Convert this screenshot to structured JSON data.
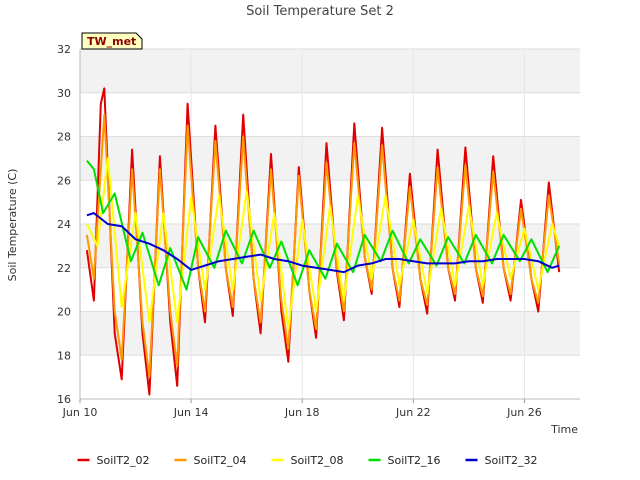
{
  "chart_data": {
    "type": "line",
    "title": "Soil Temperature Set 2",
    "xlabel": "Time",
    "ylabel": "Soil Temperature (C)",
    "badge": "TW_met",
    "ylim": [
      16,
      32
    ],
    "yticks": [
      16,
      18,
      20,
      22,
      24,
      26,
      28,
      30,
      32
    ],
    "xlim": [
      "2024-06-10",
      "2024-06-28"
    ],
    "xticks": [
      {
        "date": "2024-06-10",
        "label": "Jun 10"
      },
      {
        "date": "2024-06-14",
        "label": "Jun 14"
      },
      {
        "date": "2024-06-18",
        "label": "Jun 18"
      },
      {
        "date": "2024-06-22",
        "label": "Jun 22"
      },
      {
        "date": "2024-06-26",
        "label": "Jun 26"
      }
    ],
    "grid": true,
    "legend_position": "bottom",
    "series": [
      {
        "name": "SoilT2_02",
        "color": "#e00000",
        "points": [
          [
            "2024-06-10 06:00",
            22.8
          ],
          [
            "2024-06-10 12:00",
            20.5
          ],
          [
            "2024-06-10 18:00",
            29.5
          ],
          [
            "2024-06-10 21:00",
            30.2
          ],
          [
            "2024-06-11 06:00",
            19.0
          ],
          [
            "2024-06-11 12:00",
            16.9
          ],
          [
            "2024-06-11 21:00",
            27.4
          ],
          [
            "2024-06-12 06:00",
            19.0
          ],
          [
            "2024-06-12 12:00",
            16.2
          ],
          [
            "2024-06-12 21:00",
            27.1
          ],
          [
            "2024-06-13 06:00",
            19.5
          ],
          [
            "2024-06-13 12:00",
            16.6
          ],
          [
            "2024-06-13 21:00",
            29.5
          ],
          [
            "2024-06-14 06:00",
            22.0
          ],
          [
            "2024-06-14 12:00",
            19.5
          ],
          [
            "2024-06-14 21:00",
            28.5
          ],
          [
            "2024-06-15 06:00",
            22.0
          ],
          [
            "2024-06-15 12:00",
            19.8
          ],
          [
            "2024-06-15 21:00",
            29.0
          ],
          [
            "2024-06-16 06:00",
            21.5
          ],
          [
            "2024-06-16 12:00",
            19.0
          ],
          [
            "2024-06-16 21:00",
            27.2
          ],
          [
            "2024-06-17 06:00",
            20.0
          ],
          [
            "2024-06-17 12:00",
            17.7
          ],
          [
            "2024-06-17 21:00",
            26.6
          ],
          [
            "2024-06-18 06:00",
            21.0
          ],
          [
            "2024-06-18 12:00",
            18.8
          ],
          [
            "2024-06-18 21:00",
            27.7
          ],
          [
            "2024-06-19 06:00",
            21.8
          ],
          [
            "2024-06-19 12:00",
            19.6
          ],
          [
            "2024-06-19 21:00",
            28.6
          ],
          [
            "2024-06-20 06:00",
            22.5
          ],
          [
            "2024-06-20 12:00",
            20.8
          ],
          [
            "2024-06-20 21:00",
            28.4
          ],
          [
            "2024-06-21 06:00",
            22.0
          ],
          [
            "2024-06-21 12:00",
            20.2
          ],
          [
            "2024-06-21 21:00",
            26.3
          ],
          [
            "2024-06-22 06:00",
            21.5
          ],
          [
            "2024-06-22 12:00",
            19.9
          ],
          [
            "2024-06-22 21:00",
            27.4
          ],
          [
            "2024-06-23 06:00",
            22.0
          ],
          [
            "2024-06-23 12:00",
            20.5
          ],
          [
            "2024-06-23 21:00",
            27.5
          ],
          [
            "2024-06-24 06:00",
            22.0
          ],
          [
            "2024-06-24 12:00",
            20.4
          ],
          [
            "2024-06-24 21:00",
            27.1
          ],
          [
            "2024-06-25 06:00",
            22.0
          ],
          [
            "2024-06-25 12:00",
            20.5
          ],
          [
            "2024-06-25 21:00",
            25.1
          ],
          [
            "2024-06-26 06:00",
            21.5
          ],
          [
            "2024-06-26 12:00",
            20.0
          ],
          [
            "2024-06-26 21:00",
            25.9
          ],
          [
            "2024-06-27 06:00",
            21.8
          ]
        ]
      },
      {
        "name": "SoilT2_04",
        "color": "#ff9900",
        "points": [
          [
            "2024-06-10 06:00",
            23.5
          ],
          [
            "2024-06-10 12:00",
            21.5
          ],
          [
            "2024-06-10 21:00",
            29.0
          ],
          [
            "2024-06-11 06:00",
            20.0
          ],
          [
            "2024-06-11 12:00",
            17.8
          ],
          [
            "2024-06-11 21:00",
            26.5
          ],
          [
            "2024-06-12 06:00",
            19.5
          ],
          [
            "2024-06-12 12:00",
            17.0
          ],
          [
            "2024-06-12 21:00",
            26.5
          ],
          [
            "2024-06-13 06:00",
            20.0
          ],
          [
            "2024-06-13 12:00",
            17.5
          ],
          [
            "2024-06-13 21:00",
            28.5
          ],
          [
            "2024-06-14 06:00",
            22.0
          ],
          [
            "2024-06-14 12:00",
            20.0
          ],
          [
            "2024-06-14 21:00",
            27.8
          ],
          [
            "2024-06-15 06:00",
            22.0
          ],
          [
            "2024-06-15 12:00",
            20.2
          ],
          [
            "2024-06-15 21:00",
            28.0
          ],
          [
            "2024-06-16 06:00",
            21.5
          ],
          [
            "2024-06-16 12:00",
            19.5
          ],
          [
            "2024-06-16 21:00",
            26.5
          ],
          [
            "2024-06-17 06:00",
            20.5
          ],
          [
            "2024-06-17 12:00",
            18.3
          ],
          [
            "2024-06-17 21:00",
            26.2
          ],
          [
            "2024-06-18 06:00",
            21.0
          ],
          [
            "2024-06-18 12:00",
            19.2
          ],
          [
            "2024-06-18 21:00",
            26.8
          ],
          [
            "2024-06-19 06:00",
            22.0
          ],
          [
            "2024-06-19 12:00",
            20.0
          ],
          [
            "2024-06-19 21:00",
            27.7
          ],
          [
            "2024-06-20 06:00",
            22.5
          ],
          [
            "2024-06-20 12:00",
            21.0
          ],
          [
            "2024-06-20 21:00",
            27.6
          ],
          [
            "2024-06-21 06:00",
            22.0
          ],
          [
            "2024-06-21 12:00",
            20.5
          ],
          [
            "2024-06-21 21:00",
            25.7
          ],
          [
            "2024-06-22 06:00",
            21.5
          ],
          [
            "2024-06-22 12:00",
            20.3
          ],
          [
            "2024-06-22 21:00",
            26.6
          ],
          [
            "2024-06-23 06:00",
            22.0
          ],
          [
            "2024-06-23 12:00",
            20.8
          ],
          [
            "2024-06-23 21:00",
            26.7
          ],
          [
            "2024-06-24 06:00",
            22.0
          ],
          [
            "2024-06-24 12:00",
            20.7
          ],
          [
            "2024-06-24 21:00",
            26.4
          ],
          [
            "2024-06-25 06:00",
            22.0
          ],
          [
            "2024-06-25 12:00",
            20.8
          ],
          [
            "2024-06-25 21:00",
            24.7
          ],
          [
            "2024-06-26 06:00",
            21.5
          ],
          [
            "2024-06-26 12:00",
            20.4
          ],
          [
            "2024-06-26 21:00",
            25.3
          ],
          [
            "2024-06-27 06:00",
            22.2
          ]
        ]
      },
      {
        "name": "SoilT2_08",
        "color": "#ffff00",
        "points": [
          [
            "2024-06-10 06:00",
            24.0
          ],
          [
            "2024-06-10 15:00",
            23.0
          ],
          [
            "2024-06-11 00:00",
            27.0
          ],
          [
            "2024-06-11 12:00",
            20.2
          ],
          [
            "2024-06-12 00:00",
            24.5
          ],
          [
            "2024-06-12 12:00",
            19.5
          ],
          [
            "2024-06-13 00:00",
            24.5
          ],
          [
            "2024-06-13 12:00",
            19.5
          ],
          [
            "2024-06-14 00:00",
            25.2
          ],
          [
            "2024-06-14 12:00",
            21.0
          ],
          [
            "2024-06-15 00:00",
            25.3
          ],
          [
            "2024-06-15 12:00",
            21.0
          ],
          [
            "2024-06-16 00:00",
            25.5
          ],
          [
            "2024-06-16 12:00",
            20.5
          ],
          [
            "2024-06-17 00:00",
            24.5
          ],
          [
            "2024-06-17 12:00",
            19.2
          ],
          [
            "2024-06-18 00:00",
            24.2
          ],
          [
            "2024-06-18 12:00",
            20.0
          ],
          [
            "2024-06-19 00:00",
            24.8
          ],
          [
            "2024-06-19 12:00",
            20.5
          ],
          [
            "2024-06-20 00:00",
            25.3
          ],
          [
            "2024-06-20 12:00",
            21.5
          ],
          [
            "2024-06-21 00:00",
            25.3
          ],
          [
            "2024-06-21 12:00",
            21.2
          ],
          [
            "2024-06-22 00:00",
            24.2
          ],
          [
            "2024-06-22 12:00",
            20.8
          ],
          [
            "2024-06-23 00:00",
            24.7
          ],
          [
            "2024-06-23 12:00",
            21.2
          ],
          [
            "2024-06-24 00:00",
            24.8
          ],
          [
            "2024-06-24 12:00",
            21.2
          ],
          [
            "2024-06-25 00:00",
            24.5
          ],
          [
            "2024-06-25 12:00",
            21.5
          ],
          [
            "2024-06-26 00:00",
            23.8
          ],
          [
            "2024-06-26 12:00",
            21.0
          ],
          [
            "2024-06-27 00:00",
            24.0
          ],
          [
            "2024-06-27 06:00",
            23.0
          ]
        ]
      },
      {
        "name": "SoilT2_16",
        "color": "#00e000",
        "points": [
          [
            "2024-06-10 06:00",
            26.9
          ],
          [
            "2024-06-10 12:00",
            26.5
          ],
          [
            "2024-06-10 20:00",
            24.5
          ],
          [
            "2024-06-11 06:00",
            25.4
          ],
          [
            "2024-06-11 20:00",
            22.3
          ],
          [
            "2024-06-12 06:00",
            23.6
          ],
          [
            "2024-06-12 20:00",
            21.2
          ],
          [
            "2024-06-13 06:00",
            22.9
          ],
          [
            "2024-06-13 20:00",
            21.0
          ],
          [
            "2024-06-14 06:00",
            23.4
          ],
          [
            "2024-06-14 20:00",
            22.0
          ],
          [
            "2024-06-15 06:00",
            23.7
          ],
          [
            "2024-06-15 20:00",
            22.2
          ],
          [
            "2024-06-16 06:00",
            23.7
          ],
          [
            "2024-06-16 20:00",
            22.0
          ],
          [
            "2024-06-17 06:00",
            23.2
          ],
          [
            "2024-06-17 20:00",
            21.2
          ],
          [
            "2024-06-18 06:00",
            22.8
          ],
          [
            "2024-06-18 20:00",
            21.5
          ],
          [
            "2024-06-19 06:00",
            23.1
          ],
          [
            "2024-06-19 20:00",
            21.8
          ],
          [
            "2024-06-20 06:00",
            23.5
          ],
          [
            "2024-06-20 20:00",
            22.3
          ],
          [
            "2024-06-21 06:00",
            23.7
          ],
          [
            "2024-06-21 20:00",
            22.2
          ],
          [
            "2024-06-22 06:00",
            23.3
          ],
          [
            "2024-06-22 20:00",
            22.1
          ],
          [
            "2024-06-23 06:00",
            23.4
          ],
          [
            "2024-06-23 20:00",
            22.2
          ],
          [
            "2024-06-24 06:00",
            23.5
          ],
          [
            "2024-06-24 20:00",
            22.2
          ],
          [
            "2024-06-25 06:00",
            23.5
          ],
          [
            "2024-06-25 20:00",
            22.3
          ],
          [
            "2024-06-26 06:00",
            23.3
          ],
          [
            "2024-06-26 20:00",
            21.8
          ],
          [
            "2024-06-27 06:00",
            23.0
          ]
        ]
      },
      {
        "name": "SoilT2_32",
        "color": "#0000cc",
        "points": [
          [
            "2024-06-10 06:00",
            24.4
          ],
          [
            "2024-06-10 12:00",
            24.5
          ],
          [
            "2024-06-11 00:00",
            24.0
          ],
          [
            "2024-06-11 12:00",
            23.9
          ],
          [
            "2024-06-12 00:00",
            23.3
          ],
          [
            "2024-06-12 12:00",
            23.1
          ],
          [
            "2024-06-13 00:00",
            22.8
          ],
          [
            "2024-06-13 12:00",
            22.4
          ],
          [
            "2024-06-14 00:00",
            21.9
          ],
          [
            "2024-06-14 12:00",
            22.1
          ],
          [
            "2024-06-15 00:00",
            22.3
          ],
          [
            "2024-06-15 12:00",
            22.4
          ],
          [
            "2024-06-16 00:00",
            22.5
          ],
          [
            "2024-06-16 12:00",
            22.6
          ],
          [
            "2024-06-17 00:00",
            22.4
          ],
          [
            "2024-06-17 12:00",
            22.3
          ],
          [
            "2024-06-18 00:00",
            22.1
          ],
          [
            "2024-06-18 12:00",
            22.0
          ],
          [
            "2024-06-19 00:00",
            21.9
          ],
          [
            "2024-06-19 12:00",
            21.8
          ],
          [
            "2024-06-20 00:00",
            22.1
          ],
          [
            "2024-06-20 12:00",
            22.2
          ],
          [
            "2024-06-21 00:00",
            22.4
          ],
          [
            "2024-06-21 12:00",
            22.4
          ],
          [
            "2024-06-22 00:00",
            22.3
          ],
          [
            "2024-06-22 12:00",
            22.2
          ],
          [
            "2024-06-23 00:00",
            22.2
          ],
          [
            "2024-06-23 12:00",
            22.2
          ],
          [
            "2024-06-24 00:00",
            22.3
          ],
          [
            "2024-06-24 12:00",
            22.3
          ],
          [
            "2024-06-25 00:00",
            22.4
          ],
          [
            "2024-06-25 12:00",
            22.4
          ],
          [
            "2024-06-26 00:00",
            22.4
          ],
          [
            "2024-06-26 12:00",
            22.3
          ],
          [
            "2024-06-27 00:00",
            22.0
          ],
          [
            "2024-06-27 06:00",
            22.1
          ]
        ]
      }
    ]
  }
}
